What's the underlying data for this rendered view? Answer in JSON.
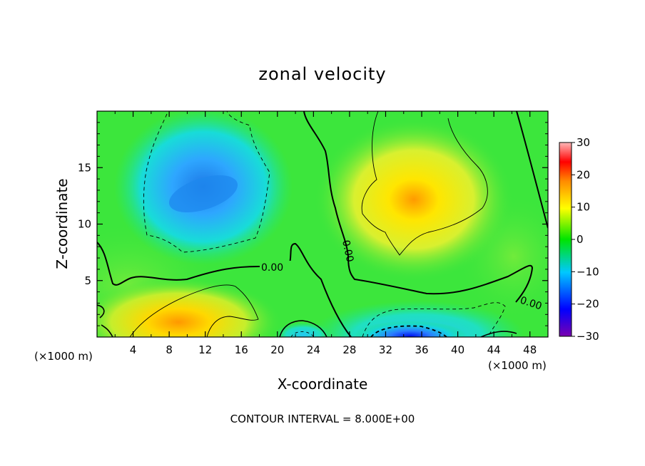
{
  "chart_data": {
    "type": "heatmap",
    "title": "zonal velocity",
    "xlabel": "X-coordinate",
    "ylabel": "Z-coordinate",
    "x_unit_left": "(×1000 m)",
    "x_unit_right": "(×1000 m)",
    "x_ticks": [
      "4",
      "8",
      "12",
      "16",
      "20",
      "24",
      "28",
      "32",
      "36",
      "40",
      "44",
      "48"
    ],
    "y_ticks": [
      "5",
      "10",
      "15"
    ],
    "xlim": [
      0,
      50
    ],
    "ylim": [
      0,
      20
    ],
    "contour_interval_text": "CONTOUR INTERVAL = 8.000E+00",
    "contour_labels": [
      "0.00",
      "0.00",
      "0.00"
    ],
    "colorbar": {
      "min": -30,
      "max": 30,
      "ticks": [
        "30",
        "20",
        "10",
        "0",
        "−10",
        "−20",
        "−30"
      ],
      "colors": [
        "#7000a0",
        "#0000ff",
        "#00c8ff",
        "#00e400",
        "#ffff00",
        "#ff9000",
        "#ff0000",
        "#ffb0b0"
      ]
    },
    "features": [
      {
        "x": 9.5,
        "z": 12,
        "value": -14
      },
      {
        "x": 34,
        "z": 1,
        "value": -22
      },
      {
        "x": 35,
        "z": 12,
        "value": 12
      },
      {
        "x": 9,
        "z": 0.5,
        "value": 14
      },
      {
        "x": 23,
        "z": 1.5,
        "value": -4
      }
    ]
  }
}
